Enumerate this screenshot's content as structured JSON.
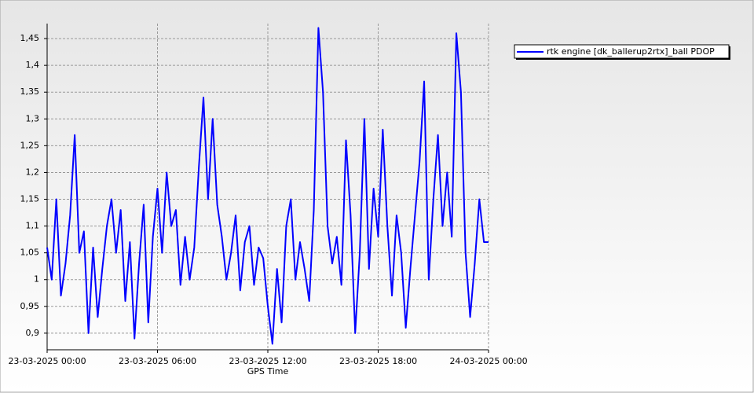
{
  "chart_data": {
    "type": "line",
    "x_label": "GPS Time",
    "x": [
      "23-03-2025 00:00",
      "23-03-2025 00:15",
      "23-03-2025 00:30",
      "23-03-2025 00:45",
      "23-03-2025 01:00",
      "23-03-2025 01:15",
      "23-03-2025 01:30",
      "23-03-2025 01:45",
      "23-03-2025 02:00",
      "23-03-2025 02:15",
      "23-03-2025 02:30",
      "23-03-2025 02:45",
      "23-03-2025 03:00",
      "23-03-2025 03:15",
      "23-03-2025 03:30",
      "23-03-2025 03:45",
      "23-03-2025 04:00",
      "23-03-2025 04:15",
      "23-03-2025 04:30",
      "23-03-2025 04:45",
      "23-03-2025 05:00",
      "23-03-2025 05:15",
      "23-03-2025 05:30",
      "23-03-2025 05:45",
      "23-03-2025 06:00",
      "23-03-2025 06:15",
      "23-03-2025 06:30",
      "23-03-2025 06:45",
      "23-03-2025 07:00",
      "23-03-2025 07:15",
      "23-03-2025 07:30",
      "23-03-2025 07:45",
      "23-03-2025 08:00",
      "23-03-2025 08:15",
      "23-03-2025 08:30",
      "23-03-2025 08:45",
      "23-03-2025 09:00",
      "23-03-2025 09:15",
      "23-03-2025 09:30",
      "23-03-2025 09:45",
      "23-03-2025 10:00",
      "23-03-2025 10:15",
      "23-03-2025 10:30",
      "23-03-2025 10:45",
      "23-03-2025 11:00",
      "23-03-2025 11:15",
      "23-03-2025 11:30",
      "23-03-2025 11:45",
      "23-03-2025 12:00",
      "23-03-2025 12:15",
      "23-03-2025 12:30",
      "23-03-2025 12:45",
      "23-03-2025 13:00",
      "23-03-2025 13:15",
      "23-03-2025 13:30",
      "23-03-2025 13:45",
      "23-03-2025 14:00",
      "23-03-2025 14:15",
      "23-03-2025 14:30",
      "23-03-2025 14:45",
      "23-03-2025 15:00",
      "23-03-2025 15:15",
      "23-03-2025 15:30",
      "23-03-2025 15:45",
      "23-03-2025 16:00",
      "23-03-2025 16:15",
      "23-03-2025 16:30",
      "23-03-2025 16:45",
      "23-03-2025 17:00",
      "23-03-2025 17:15",
      "23-03-2025 17:30",
      "23-03-2025 17:45",
      "23-03-2025 18:00",
      "23-03-2025 18:15",
      "23-03-2025 18:30",
      "23-03-2025 18:45",
      "23-03-2025 19:00",
      "23-03-2025 19:15",
      "23-03-2025 19:30",
      "23-03-2025 19:45",
      "23-03-2025 20:00",
      "23-03-2025 20:15",
      "23-03-2025 20:30",
      "23-03-2025 20:45",
      "23-03-2025 21:00",
      "23-03-2025 21:15",
      "23-03-2025 21:30",
      "23-03-2025 21:45",
      "23-03-2025 22:00",
      "23-03-2025 22:15",
      "23-03-2025 22:30",
      "23-03-2025 22:45",
      "23-03-2025 23:00",
      "23-03-2025 23:15",
      "23-03-2025 23:30",
      "23-03-2025 23:45",
      "24-03-2025 00:00"
    ],
    "series": [
      {
        "name": "rtk engine [dk_ballerup2rtx]_ball PDOP",
        "color": "#0000ff",
        "values": [
          1.06,
          1.0,
          1.15,
          0.97,
          1.03,
          1.12,
          1.27,
          1.05,
          1.09,
          0.9,
          1.06,
          0.93,
          1.02,
          1.1,
          1.15,
          1.05,
          1.13,
          0.96,
          1.07,
          0.89,
          1.03,
          1.14,
          0.92,
          1.08,
          1.17,
          1.05,
          1.2,
          1.1,
          1.13,
          0.99,
          1.08,
          1.0,
          1.06,
          1.21,
          1.34,
          1.15,
          1.3,
          1.14,
          1.08,
          1.0,
          1.05,
          1.12,
          0.98,
          1.07,
          1.1,
          0.99,
          1.06,
          1.04,
          0.95,
          0.88,
          1.02,
          0.92,
          1.1,
          1.15,
          1.0,
          1.07,
          1.02,
          0.96,
          1.13,
          1.47,
          1.35,
          1.1,
          1.03,
          1.08,
          0.99,
          1.26,
          1.12,
          0.9,
          1.05,
          1.3,
          1.02,
          1.17,
          1.08,
          1.28,
          1.1,
          0.97,
          1.12,
          1.05,
          0.91,
          1.02,
          1.12,
          1.22,
          1.37,
          1.0,
          1.15,
          1.27,
          1.1,
          1.2,
          1.08,
          1.46,
          1.35,
          1.05,
          0.93,
          1.03,
          1.15,
          1.07,
          1.07
        ]
      }
    ],
    "xlim": [
      "23-03-2025 00:00",
      "24-03-2025 00:00"
    ],
    "xticks": [
      "23-03-2025 00:00",
      "23-03-2025 06:00",
      "23-03-2025 12:00",
      "23-03-2025 18:00",
      "24-03-2025 00:00"
    ],
    "ylim": [
      0.869,
      1.478
    ],
    "yticks": [
      {
        "value": 0.9,
        "label": "0,9"
      },
      {
        "value": 0.95,
        "label": "0,95"
      },
      1,
      {
        "value": 1.05,
        "label": "1,05"
      },
      {
        "value": 1.1,
        "label": "1,1"
      },
      {
        "value": 1.15,
        "label": "1,15"
      },
      {
        "value": 1.2,
        "label": "1,2"
      },
      {
        "value": 1.25,
        "label": "1,25"
      },
      {
        "value": 1.3,
        "label": "1,3"
      },
      {
        "value": 1.35,
        "label": "1,35"
      },
      {
        "value": 1.4,
        "label": "1,4"
      },
      {
        "value": 1.45,
        "label": "1,45"
      }
    ],
    "grid": true,
    "legend": "top-right"
  }
}
